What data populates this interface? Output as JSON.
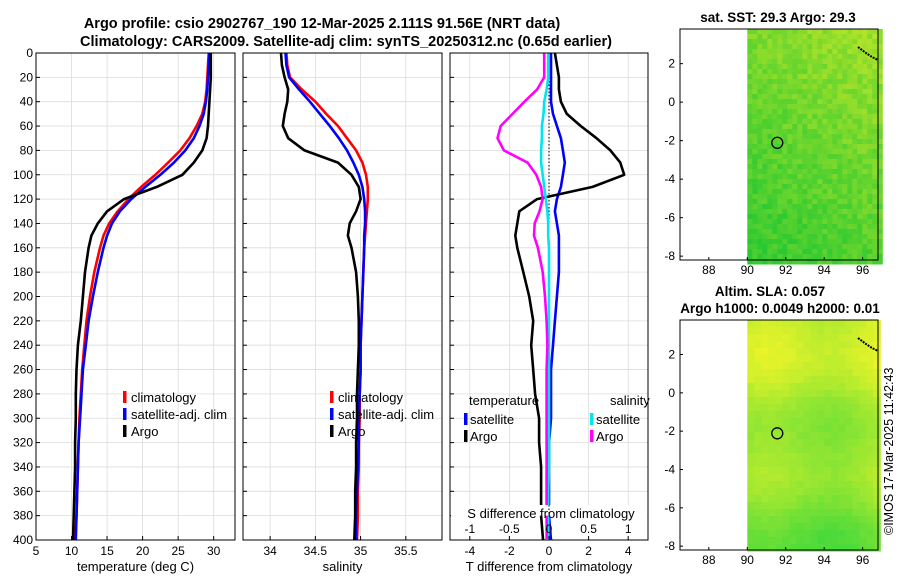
{
  "figure_title_line1": "Argo profile: csio 2902767_190 12-Mar-2025 2.111S 91.56E (NRT data)",
  "figure_title_line2": "Climatology: CARS2009. Satellite-adj clim: synTS_20250312.nc (0.65d earlier)",
  "side_stamp": "©IMOS 17-Mar-2025 11:42:43",
  "colors": {
    "climatology": "#ff0000",
    "satellite": "#0000ff",
    "argo": "#000000",
    "salinity_satellite": "#00e5ee",
    "salinity_argo": "#ff00ff",
    "map_sst_base": "#36d23a",
    "map_sla_base": "#80e040",
    "frame": "#000000"
  },
  "chart_data": [
    {
      "type": "line",
      "title": "",
      "xlabel": "temperature (deg C)",
      "ylabel": "",
      "xlim": [
        5,
        33
      ],
      "ylim": [
        400,
        0
      ],
      "xticks": [
        "5",
        "10",
        "15",
        "20",
        "25",
        "30"
      ],
      "yticks": [
        "0",
        "20",
        "40",
        "60",
        "80",
        "100",
        "120",
        "140",
        "160",
        "180",
        "200",
        "220",
        "240",
        "260",
        "280",
        "300",
        "320",
        "340",
        "360",
        "380",
        "400"
      ],
      "legend": [
        "climatology",
        "satellite-adj. clim",
        "Argo"
      ],
      "depth": [
        0,
        10,
        20,
        30,
        40,
        50,
        60,
        70,
        80,
        90,
        100,
        110,
        120,
        130,
        140,
        150,
        160,
        180,
        200,
        220,
        240,
        260,
        280,
        300,
        320,
        340,
        360,
        380,
        400
      ],
      "series": [
        {
          "name": "climatology",
          "color": "#ff0000",
          "values": [
            29.3,
            29.2,
            29.1,
            29.0,
            28.8,
            28.4,
            27.6,
            26.6,
            25.3,
            23.6,
            21.8,
            19.8,
            18.0,
            16.5,
            15.3,
            14.5,
            14.0,
            13.2,
            12.6,
            12.1,
            11.8,
            11.5,
            11.3,
            11.1,
            11.0,
            10.9,
            10.8,
            10.7,
            10.5
          ]
        },
        {
          "name": "satellite-adj. clim",
          "color": "#0000ff",
          "values": [
            29.4,
            29.3,
            29.2,
            29.1,
            28.9,
            28.6,
            28.0,
            27.2,
            26.0,
            24.4,
            22.5,
            20.4,
            18.4,
            16.8,
            15.7,
            15.0,
            14.5,
            13.7,
            13.0,
            12.4,
            12.0,
            11.6,
            11.4,
            11.2,
            11.0,
            10.9,
            10.8,
            10.7,
            10.6
          ]
        },
        {
          "name": "Argo",
          "color": "#000000",
          "values": [
            29.6,
            29.6,
            29.6,
            29.5,
            29.4,
            29.3,
            29.2,
            29.0,
            28.4,
            27.2,
            25.6,
            22.0,
            17.4,
            15.0,
            13.7,
            12.8,
            12.4,
            11.9,
            11.6,
            11.3,
            10.9,
            10.7,
            10.6,
            10.6,
            10.5,
            10.5,
            10.4,
            10.3,
            10.2
          ]
        }
      ]
    },
    {
      "type": "line",
      "title": "",
      "xlabel": "salinity",
      "ylabel": "",
      "xlim": [
        33.7,
        35.9
      ],
      "ylim": [
        400,
        0
      ],
      "xticks": [
        "34",
        "34.5",
        "35",
        "35.5"
      ],
      "legend": [
        "climatology",
        "satellite-adj. clim",
        "Argo"
      ],
      "depth": [
        0,
        10,
        20,
        30,
        40,
        50,
        60,
        70,
        80,
        90,
        100,
        110,
        120,
        130,
        140,
        150,
        160,
        180,
        200,
        220,
        240,
        260,
        280,
        300,
        320,
        340,
        360,
        380,
        400
      ],
      "series": [
        {
          "name": "climatology",
          "color": "#ff0000",
          "values": [
            34.18,
            34.19,
            34.22,
            34.35,
            34.5,
            34.62,
            34.75,
            34.85,
            34.95,
            35.02,
            35.06,
            35.08,
            35.08,
            35.07,
            35.06,
            35.05,
            35.04,
            35.03,
            35.02,
            35.01,
            35.0,
            35.0,
            34.99,
            34.99,
            34.98,
            34.98,
            34.97,
            34.97,
            34.96
          ]
        },
        {
          "name": "satellite-adj. clim",
          "color": "#0000ff",
          "values": [
            34.17,
            34.18,
            34.21,
            34.32,
            34.44,
            34.55,
            34.66,
            34.76,
            34.85,
            34.92,
            34.98,
            35.02,
            35.04,
            35.05,
            35.05,
            35.04,
            35.04,
            35.03,
            35.02,
            35.01,
            35.0,
            35.0,
            34.99,
            34.98,
            34.98,
            34.97,
            34.96,
            34.95,
            34.95
          ]
        },
        {
          "name": "Argo",
          "color": "#000000",
          "values": [
            34.12,
            34.13,
            34.16,
            34.2,
            34.19,
            34.16,
            34.14,
            34.2,
            34.38,
            34.75,
            34.9,
            34.98,
            35.0,
            34.95,
            34.88,
            34.86,
            34.9,
            34.95,
            34.97,
            34.98,
            34.98,
            34.97,
            34.96,
            34.96,
            34.95,
            34.95,
            34.94,
            34.94,
            34.93
          ]
        }
      ]
    },
    {
      "type": "line",
      "title": "",
      "xlabel": "T difference from climatology",
      "x2label": "S difference from climatology",
      "ylabel": "",
      "xlim": [
        -5,
        5
      ],
      "x2lim": [
        -1.25,
        1.25
      ],
      "ylim": [
        400,
        0
      ],
      "xticks": [
        "-4",
        "-2",
        "0",
        "2",
        "4"
      ],
      "x2ticks": [
        "-1",
        "-0.5",
        "0",
        "0.5",
        "1"
      ],
      "legend_left_title": "temperature",
      "legend_right_title": "salinity",
      "legend_left": [
        "satellite",
        "Argo"
      ],
      "legend_right": [
        "satellite",
        "Argo"
      ],
      "depth": [
        0,
        10,
        20,
        30,
        40,
        50,
        60,
        70,
        80,
        90,
        100,
        110,
        120,
        130,
        140,
        150,
        160,
        180,
        200,
        220,
        240,
        260,
        280,
        300,
        320,
        340,
        360,
        380,
        400
      ],
      "series": [
        {
          "name": "temperature satellite",
          "color": "#0000ff",
          "values": [
            0.1,
            0.1,
            0.1,
            0.1,
            0.1,
            0.2,
            0.4,
            0.6,
            0.7,
            0.8,
            0.7,
            0.6,
            0.4,
            0.3,
            0.4,
            0.5,
            0.5,
            0.5,
            0.4,
            0.3,
            0.2,
            0.1,
            0.1,
            0.1,
            0.0,
            0.0,
            0.0,
            0.0,
            0.1
          ]
        },
        {
          "name": "temperature Argo",
          "color": "#000000",
          "values": [
            0.3,
            0.4,
            0.5,
            0.5,
            0.6,
            0.9,
            1.6,
            2.4,
            3.1,
            3.6,
            3.8,
            2.2,
            -0.6,
            -1.5,
            -1.6,
            -1.7,
            -1.6,
            -1.3,
            -1.0,
            -0.8,
            -0.9,
            -0.8,
            -0.7,
            -0.5,
            -0.5,
            -0.4,
            -0.4,
            -0.4,
            -0.3
          ]
        },
        {
          "name": "salinity satellite",
          "color": "#00e5ee",
          "values": [
            -0.01,
            -0.01,
            -0.01,
            -0.03,
            -0.06,
            -0.07,
            -0.09,
            -0.09,
            -0.1,
            -0.1,
            -0.08,
            -0.06,
            -0.04,
            -0.02,
            -0.01,
            -0.01,
            0.0,
            0.0,
            0.0,
            0.0,
            0.0,
            0.0,
            0.0,
            0.0,
            0.0,
            0.0,
            -0.01,
            -0.01,
            -0.01
          ]
        },
        {
          "name": "salinity Argo",
          "color": "#ff00ff",
          "values": [
            -0.06,
            -0.06,
            -0.06,
            -0.15,
            -0.31,
            -0.46,
            -0.61,
            -0.65,
            -0.57,
            -0.27,
            -0.16,
            -0.1,
            -0.08,
            -0.12,
            -0.18,
            -0.19,
            -0.14,
            -0.08,
            -0.05,
            -0.03,
            -0.02,
            -0.03,
            -0.03,
            -0.03,
            -0.03,
            -0.03,
            -0.03,
            -0.03,
            -0.03
          ]
        }
      ]
    },
    {
      "type": "heatmap",
      "title": "sat. SST: 29.3 Argo: 29.3",
      "xlim": [
        86.5,
        96.8
      ],
      "ylim": [
        -8.2,
        3.8
      ],
      "xticks": [
        "88",
        "90",
        "92",
        "94",
        "96"
      ],
      "yticks": [
        "2",
        "0",
        "-2",
        "-4",
        "-6",
        "-8"
      ],
      "data_lon_min": 90,
      "float_position": {
        "lon": 91.56,
        "lat": -2.111
      }
    },
    {
      "type": "heatmap",
      "title_line1": "Altim. SLA: 0.057",
      "title_line2": "Argo h1000: 0.0049 h2000: 0.01",
      "xlim": [
        86.5,
        96.8
      ],
      "ylim": [
        -8.2,
        3.8
      ],
      "xticks": [
        "88",
        "90",
        "92",
        "94",
        "96"
      ],
      "yticks": [
        "2",
        "0",
        "-2",
        "-4",
        "-6",
        "-8"
      ],
      "data_lon_min": 90,
      "float_position": {
        "lon": 91.56,
        "lat": -2.111
      }
    }
  ]
}
